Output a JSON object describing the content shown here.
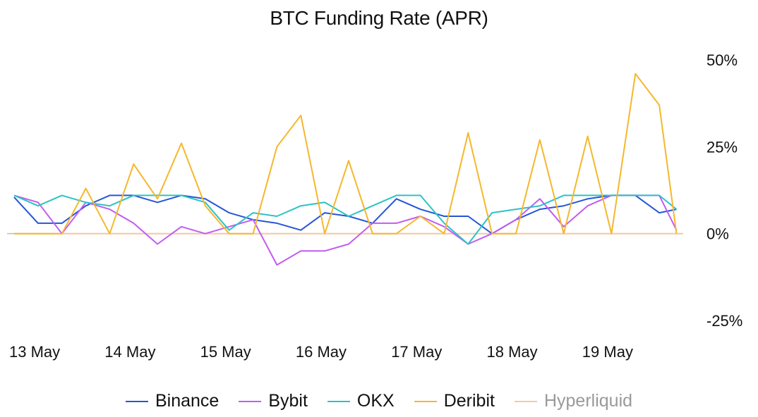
{
  "chart_data": {
    "type": "line",
    "title": "BTC Funding Rate (APR)",
    "xlabel": "",
    "ylabel": "",
    "x_ticks": [
      "13 May",
      "14 May",
      "15 May",
      "16 May",
      "17 May",
      "18 May",
      "19 May"
    ],
    "y_ticks": [
      {
        "value": 50,
        "label": "50%"
      },
      {
        "value": 25,
        "label": "25%"
      },
      {
        "value": 0,
        "label": "0%"
      },
      {
        "value": -25,
        "label": "-25%"
      }
    ],
    "ylim": [
      -25,
      50
    ],
    "xlim": [
      0,
      7
    ],
    "legend_position": "bottom",
    "grid": false,
    "series": [
      {
        "name": "Binance",
        "color": "#2556d6",
        "x": [
          0,
          0.25,
          0.5,
          0.75,
          1,
          1.25,
          1.5,
          1.75,
          2,
          2.25,
          2.5,
          2.75,
          3,
          3.25,
          3.5,
          3.75,
          4,
          4.25,
          4.5,
          4.75,
          5,
          5.25,
          5.5,
          5.75,
          6,
          6.25,
          6.5,
          6.75,
          6.93
        ],
        "values": [
          10.5,
          3,
          3,
          8,
          11,
          11,
          9,
          11,
          10,
          6,
          4,
          3,
          1,
          6,
          5,
          3,
          10,
          7,
          5,
          5,
          0,
          4,
          7,
          8,
          10,
          11,
          11,
          6,
          7
        ]
      },
      {
        "name": "Bybit",
        "color": "#c25cf0",
        "x": [
          0,
          0.25,
          0.5,
          0.75,
          1,
          1.25,
          1.5,
          1.75,
          2,
          2.25,
          2.5,
          2.75,
          3,
          3.25,
          3.5,
          3.75,
          4,
          4.25,
          4.5,
          4.75,
          5,
          5.25,
          5.5,
          5.75,
          6,
          6.25,
          6.5,
          6.75,
          6.93
        ],
        "values": [
          11,
          9,
          0,
          9,
          7,
          3,
          -3,
          2,
          0,
          2,
          4,
          -9,
          -5,
          -5,
          -3,
          3,
          3,
          5,
          2,
          -3,
          0,
          4,
          10,
          2,
          8,
          11,
          11,
          11,
          1
        ]
      },
      {
        "name": "OKX",
        "color": "#2cc3c5",
        "x": [
          0,
          0.25,
          0.5,
          0.75,
          1,
          1.25,
          1.5,
          1.75,
          2,
          2.25,
          2.5,
          2.75,
          3,
          3.25,
          3.5,
          3.75,
          4,
          4.25,
          4.5,
          4.75,
          5,
          5.25,
          5.5,
          5.75,
          6,
          6.25,
          6.5,
          6.75,
          6.93
        ],
        "values": [
          11,
          8,
          11,
          9,
          8,
          11,
          11,
          11,
          9,
          1,
          6,
          5,
          8,
          9,
          5,
          8,
          11,
          11,
          3,
          -3,
          6,
          7,
          8,
          11,
          11,
          11,
          11,
          11,
          7
        ]
      },
      {
        "name": "Deribit",
        "color": "#f5b72d",
        "x": [
          0,
          0.25,
          0.5,
          0.75,
          1,
          1.25,
          1.5,
          1.75,
          2,
          2.25,
          2.5,
          2.75,
          3,
          3.25,
          3.5,
          3.75,
          4,
          4.25,
          4.5,
          4.75,
          5,
          5.25,
          5.5,
          5.75,
          6,
          6.25,
          6.5,
          6.75,
          6.93
        ],
        "values": [
          0,
          0,
          0,
          13,
          0,
          20,
          10,
          26,
          8,
          0,
          0,
          25,
          34,
          0,
          21,
          0,
          0,
          5,
          0,
          29,
          0,
          0,
          27,
          0,
          28,
          0,
          46,
          37,
          0
        ]
      },
      {
        "name": "Hyperliquid",
        "color": "#f7c7a3",
        "x": [
          0,
          7
        ],
        "values": [
          0,
          0
        ]
      }
    ]
  }
}
